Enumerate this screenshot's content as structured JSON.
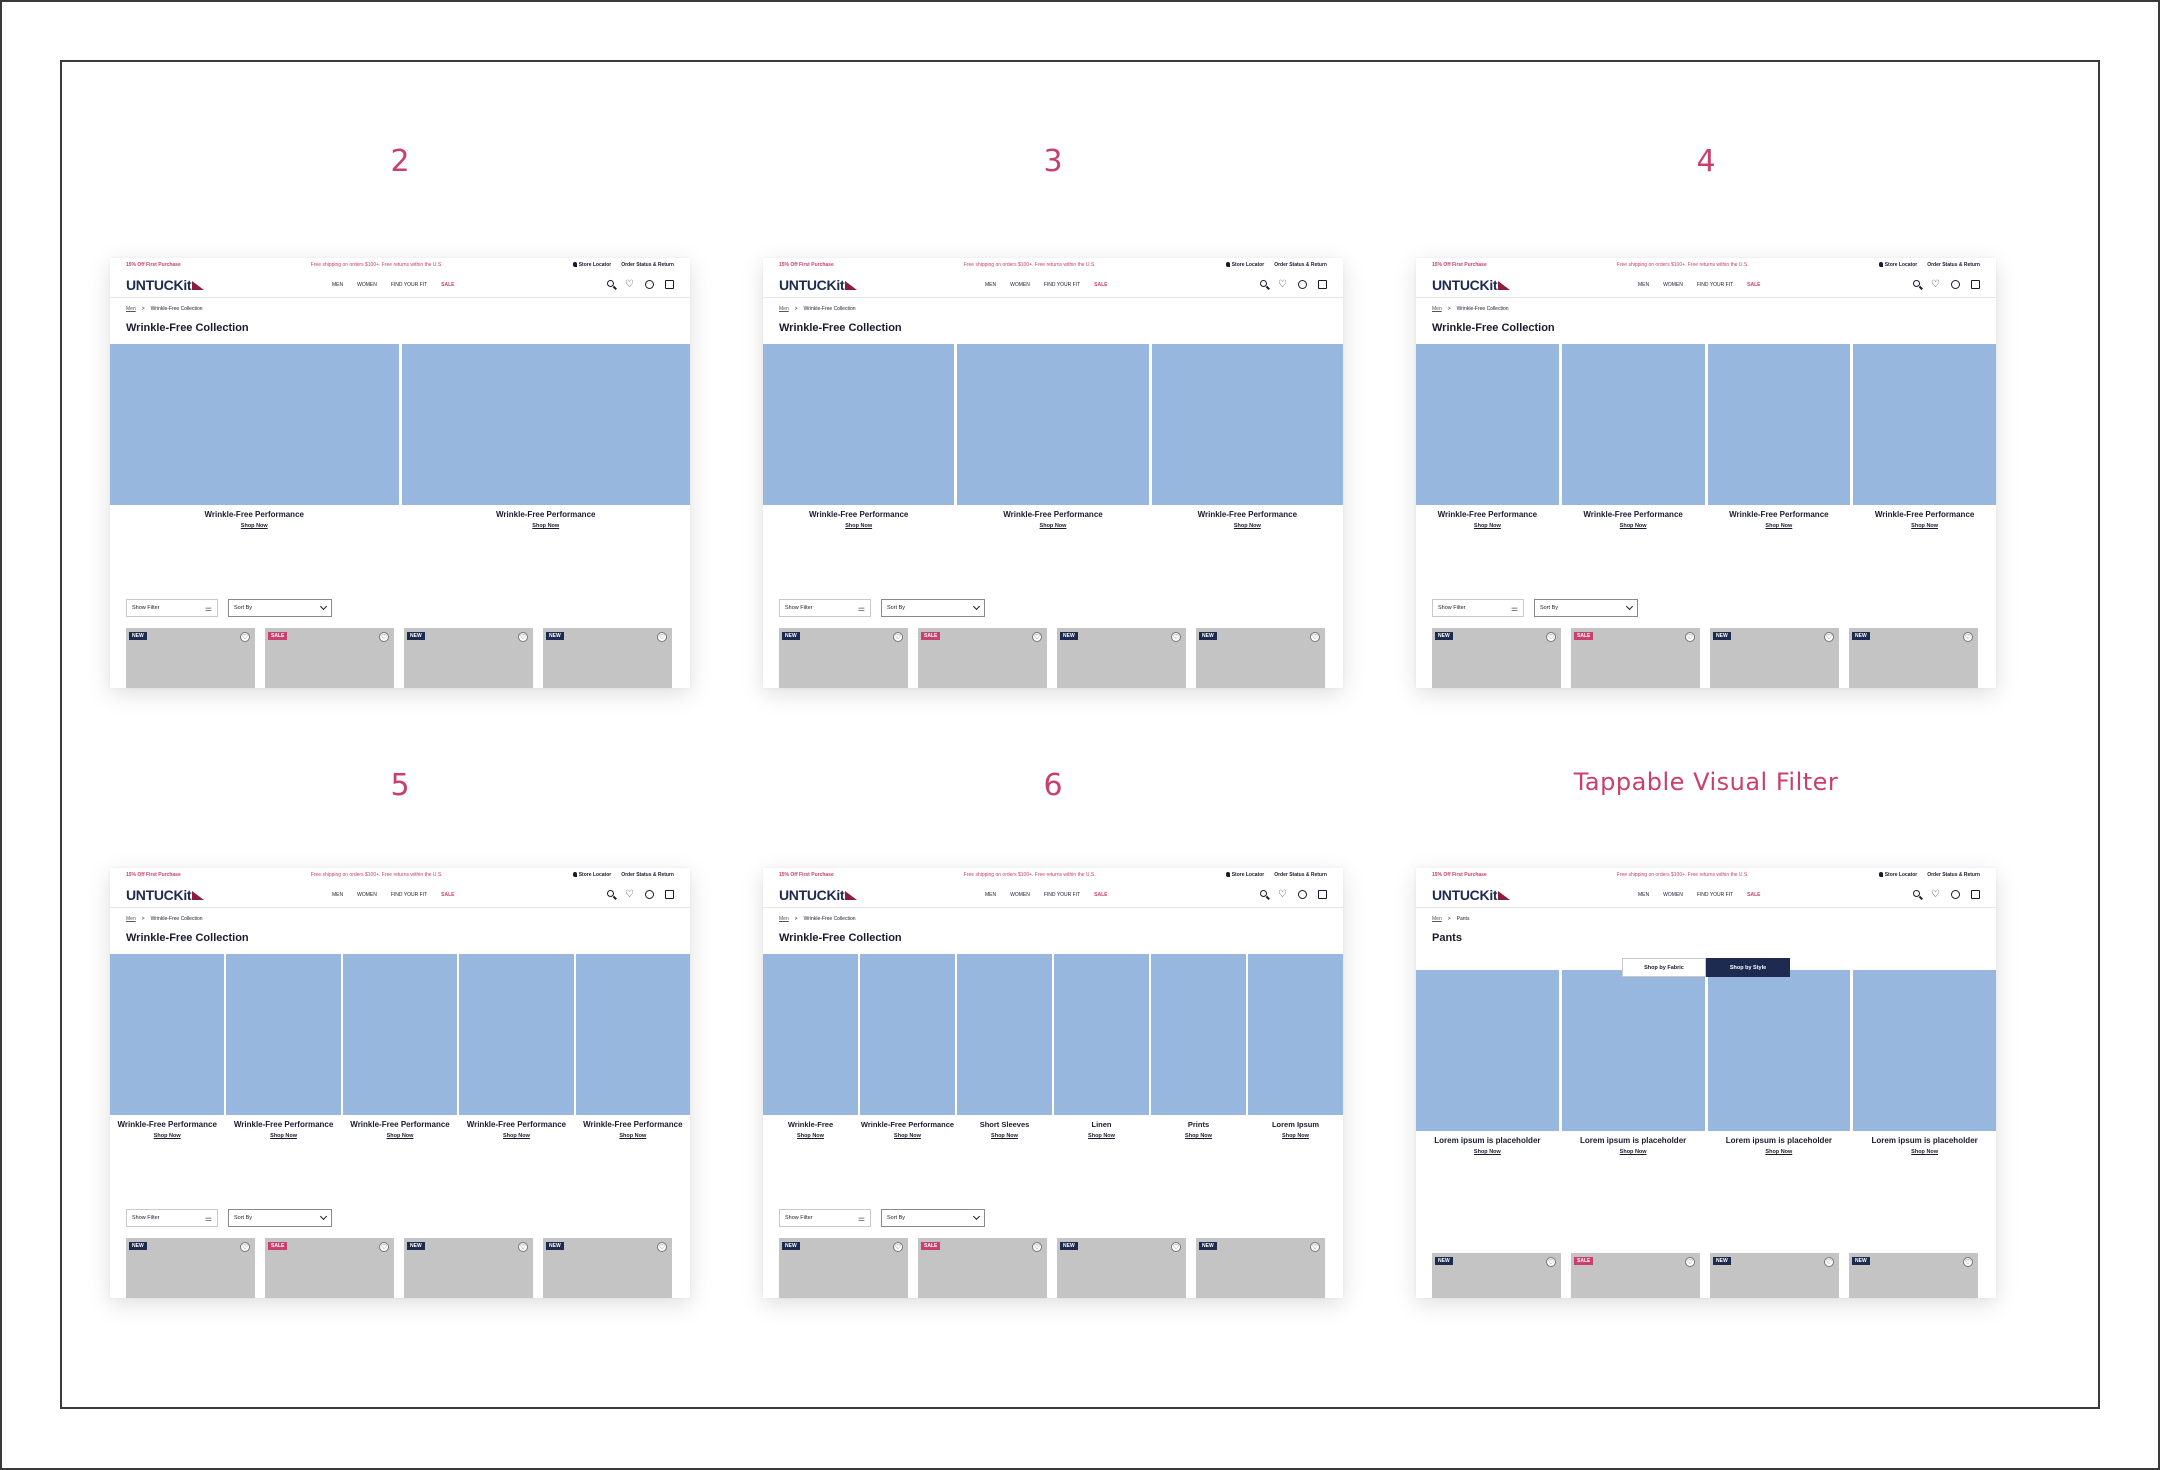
{
  "header": {
    "promo_left": "15% Off First Purchase",
    "promo_mid": "Free shipping on orders $100+. Free returns within the U.S.",
    "store_locator": "Store Locator",
    "order_status": "Order Status & Return",
    "logo_text": "UNTUCK",
    "logo_suffix": "it",
    "nav": [
      "MEN",
      "WOMEN",
      "FIND YOUR FIT",
      "SALE"
    ]
  },
  "common": {
    "crumb_home": "Men",
    "crumb_sep": ">",
    "show_filter": "Show Filter",
    "sort_by": "Sort By",
    "shop_now": "Shop Now",
    "badge_new": "NEW",
    "badge_sale": "SALE"
  },
  "variants": [
    {
      "label": "2",
      "crumb": "Wrinkle-Free Collection",
      "title": "Wrinkle-Free Collection",
      "tiles": [
        "Wrinkle-Free Performance",
        "Wrinkle-Free Performance"
      ]
    },
    {
      "label": "3",
      "crumb": "Wrinkle-Free Collection",
      "title": "Wrinkle-Free Collection",
      "tiles": [
        "Wrinkle-Free Performance",
        "Wrinkle-Free Performance",
        "Wrinkle-Free Performance"
      ]
    },
    {
      "label": "4",
      "crumb": "Wrinkle-Free Collection",
      "title": "Wrinkle-Free Collection",
      "tiles": [
        "Wrinkle-Free Performance",
        "Wrinkle-Free Performance",
        "Wrinkle-Free Performance",
        "Wrinkle-Free Performance"
      ]
    },
    {
      "label": "5",
      "crumb": "Wrinkle-Free Collection",
      "title": "Wrinkle-Free Collection",
      "tiles": [
        "Wrinkle-Free Performance",
        "Wrinkle-Free Performance",
        "Wrinkle-Free Performance",
        "Wrinkle-Free Performance",
        "Wrinkle-Free Performance"
      ]
    },
    {
      "label": "6",
      "crumb": "Wrinkle-Free Collection",
      "title": "Wrinkle-Free Collection",
      "tiles": [
        "Wrinkle-Free",
        "Wrinkle-Free Performance",
        "Short Sleeves",
        "Linen",
        "Prints",
        "Lorem Ipsum"
      ]
    },
    {
      "label": "Tappable Visual Filter",
      "crumb": "Pants",
      "title": "Pants",
      "toggle": [
        "Shop by Fabric",
        "Shop by Style"
      ],
      "tiles": [
        "Lorem ipsum is placeholder",
        "Lorem ipsum is placeholder",
        "Lorem ipsum is placeholder",
        "Lorem ipsum is placeholder"
      ]
    }
  ],
  "colors": {
    "accent": "#c8406b",
    "navy": "#1c2b4f",
    "tile": "#97b7df",
    "product": "#c4c4c4"
  }
}
